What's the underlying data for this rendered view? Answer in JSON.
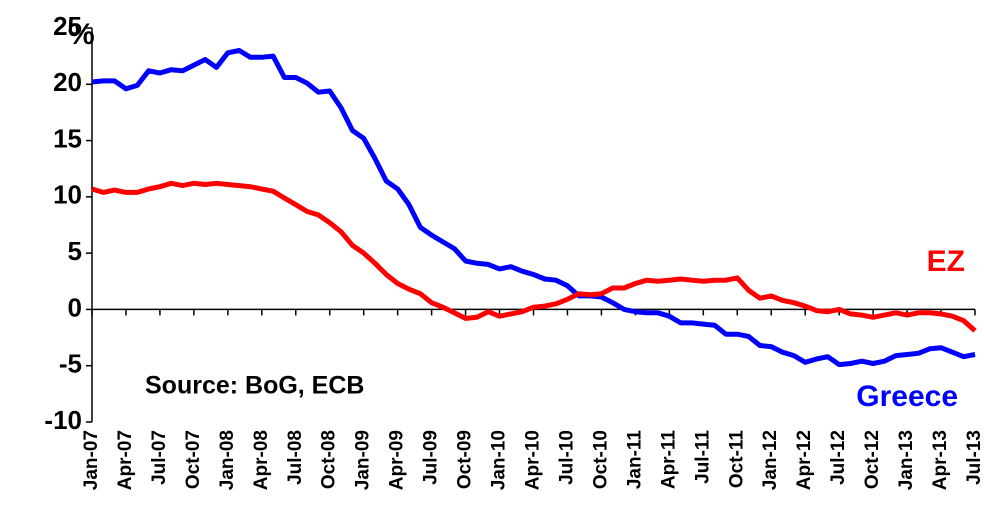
{
  "chart_data": {
    "type": "line",
    "y_axis_label": "%",
    "annotations": [
      "Source: BoG, ECB"
    ],
    "categories": [
      "Jan-07",
      null,
      null,
      "Apr-07",
      null,
      null,
      "Jul-07",
      null,
      null,
      "Oct-07",
      null,
      null,
      "Jan-08",
      null,
      null,
      "Apr-08",
      null,
      null,
      "Jul-08",
      null,
      null,
      "Oct-08",
      null,
      null,
      "Jan-09",
      null,
      null,
      "Apr-09",
      null,
      null,
      "Jul-09",
      null,
      null,
      "Oct-09",
      null,
      null,
      "Jan-10",
      null,
      null,
      "Apr-10",
      null,
      null,
      "Jul-10",
      null,
      null,
      "Oct-10",
      null,
      null,
      "Jan-11",
      null,
      null,
      "Apr-11",
      null,
      null,
      "Jul-11",
      null,
      null,
      "Oct-11",
      null,
      null,
      "Jan-12",
      null,
      null,
      "Apr-12",
      null,
      null,
      "Jul-12",
      null,
      null,
      "Oct-12",
      null,
      null,
      "Jan-13",
      null,
      null,
      "Apr-13",
      null,
      null,
      "Jul-13"
    ],
    "series": [
      {
        "name": "Greece",
        "color": "#0000ff",
        "values": [
          20.2,
          20.3,
          20.3,
          19.6,
          19.9,
          21.2,
          21.0,
          21.3,
          21.2,
          21.7,
          22.2,
          21.5,
          22.8,
          23.0,
          22.4,
          22.4,
          22.5,
          20.6,
          20.6,
          20.1,
          19.3,
          19.4,
          17.9,
          15.9,
          15.2,
          13.4,
          11.4,
          10.7,
          9.3,
          7.3,
          6.6,
          6.0,
          5.4,
          4.3,
          4.1,
          4.0,
          3.6,
          3.8,
          3.4,
          3.1,
          2.7,
          2.6,
          2.1,
          1.2,
          1.2,
          1.1,
          0.6,
          0.0,
          -0.2,
          -0.3,
          -0.3,
          -0.6,
          -1.2,
          -1.2,
          -1.3,
          -1.4,
          -2.2,
          -2.2,
          -2.4,
          -3.2,
          -3.3,
          -3.8,
          -4.1,
          -4.7,
          -4.4,
          -4.2,
          -4.9,
          -4.8,
          -4.6,
          -4.8,
          -4.6,
          -4.1,
          -4.0,
          -3.9,
          -3.5,
          -3.4,
          -3.8,
          -4.2,
          -4.0
        ]
      },
      {
        "name": "EZ",
        "color": "#ff0000",
        "values": [
          10.7,
          10.4,
          10.6,
          10.4,
          10.4,
          10.7,
          10.9,
          11.2,
          11.0,
          11.2,
          11.1,
          11.2,
          11.1,
          11.0,
          10.9,
          10.7,
          10.5,
          9.9,
          9.3,
          8.7,
          8.4,
          7.7,
          6.9,
          5.7,
          5.0,
          4.1,
          3.1,
          2.3,
          1.8,
          1.4,
          0.6,
          0.2,
          -0.3,
          -0.8,
          -0.7,
          -0.2,
          -0.6,
          -0.4,
          -0.2,
          0.2,
          0.3,
          0.5,
          0.9,
          1.4,
          1.3,
          1.4,
          1.9,
          1.9,
          2.3,
          2.6,
          2.5,
          2.6,
          2.7,
          2.6,
          2.5,
          2.6,
          2.6,
          2.8,
          1.7,
          1.0,
          1.2,
          0.8,
          0.6,
          0.3,
          -0.1,
          -0.2,
          0.0,
          -0.4,
          -0.5,
          -0.7,
          -0.5,
          -0.3,
          -0.5,
          -0.3,
          -0.3,
          -0.4,
          -0.6,
          -1.0,
          -1.9
        ]
      }
    ],
    "ylim": [
      -10,
      25
    ],
    "yticks": [
      -10,
      -5,
      0,
      5,
      10,
      15,
      20,
      25
    ],
    "grid": false
  }
}
